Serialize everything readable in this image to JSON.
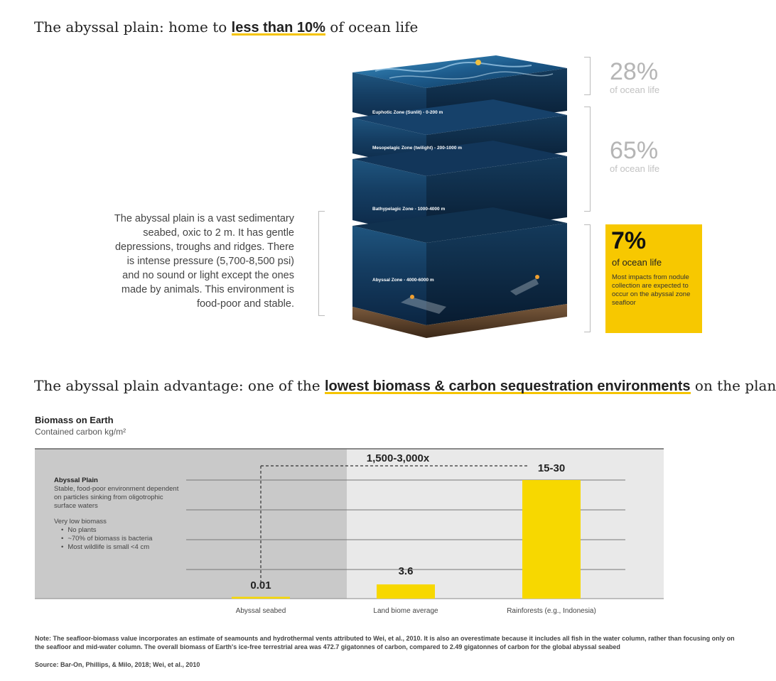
{
  "section1": {
    "title_before": "The abyssal plain: home to ",
    "title_highlight": "less than 10%",
    "title_after": " of ocean life",
    "zones": [
      {
        "label": "Euphotic Zone (Sunlit) - 0-200 m"
      },
      {
        "label": "Mesopelagic Zone (twilight) - 200-1000 m"
      },
      {
        "label": "Bathypelagic Zone - 1000-4000 m"
      },
      {
        "label": "Abyssal Zone - 4000-6000 m"
      }
    ],
    "stats": [
      {
        "pct": "28%",
        "sub": "of ocean life"
      },
      {
        "pct": "65%",
        "sub": "of ocean life"
      }
    ],
    "callout": {
      "pct": "7%",
      "sub": "of ocean life",
      "text": "Most impacts from nodule collection are expected to occur on the abyssal zone seafloor"
    },
    "description": "The abyssal plain is a vast sedimentary seabed, oxic to 2 m. It has gentle depressions, troughs and ridges. There is intense pressure (5,700-8,500 psi) and no sound or light except the ones made by animals. This environment is food-poor and stable."
  },
  "section2": {
    "title_before": "The abyssal plain advantage: one of the ",
    "title_highlight": "lowest biomass & carbon sequestration environments",
    "title_after": " on the planet"
  },
  "chart_data": {
    "type": "bar",
    "title": "Biomass on Earth",
    "subtitle": "Contained carbon kg/m²",
    "categories": [
      "Abyssal seabed",
      "Land biome average",
      "Rainforests (e.g., Indonesia)"
    ],
    "values": [
      0.01,
      3.6,
      22.5
    ],
    "value_labels": [
      "0.01",
      "3.6",
      "15-30"
    ],
    "ylim": [
      0,
      30
    ],
    "grid": true,
    "bar_color": "#f7d800",
    "annotation": "1,500-3,000x",
    "panel": {
      "heading": "Abyssal Plain",
      "text": "Stable, food-poor environment dependent on particles sinking from oligotrophic surface waters",
      "subheading": "Very low biomass",
      "bullets": [
        "No plants",
        "~70% of biomass is bacteria",
        "Most wildlife is small <4 cm"
      ]
    }
  },
  "footer": {
    "note": "Note: The seafloor-biomass value incorporates an estimate of seamounts and hydrothermal vents attributed to Wei, et al., 2010. It is also an overestimate because it includes all fish in the water column, rather than focusing only on the seafloor and mid-water column. The overall biomass of Earth's ice-free terrestrial area was 472.7 gigatonnes of carbon, compared to 2.49 gigatonnes of carbon for the global abyssal seabed",
    "source": "Source: Bar-On, Phillips, & Milo, 2018; Wei, et al., 2010"
  },
  "colors": {
    "accent": "#f7c800",
    "ocean_dark": "#0d2a48",
    "ocean_light": "#2f78a8"
  }
}
